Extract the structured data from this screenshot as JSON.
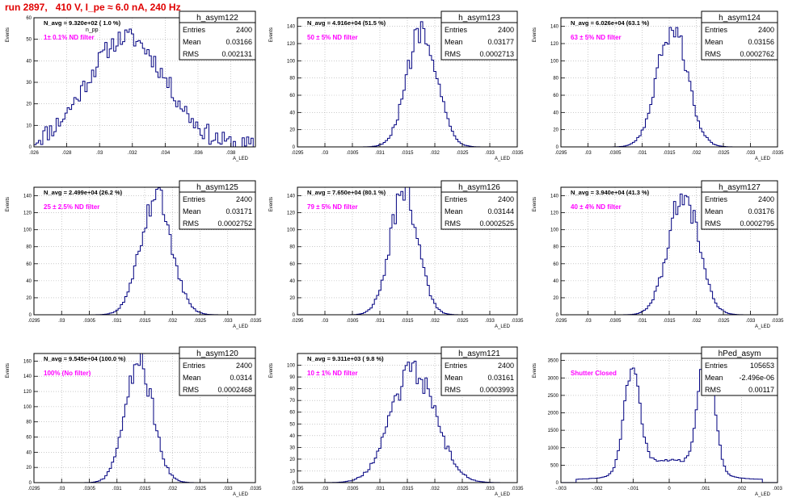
{
  "run_title": "run 2897,   410 V, I_pe ≈ 6.0 nA, 240 Hz",
  "chart_data": [
    {
      "type": "histogram",
      "name": "h_asym122",
      "navg": "N_avg = 9.320e+02 ( 1.0 %)",
      "filter": "1± 0.1% ND filter",
      "stats": [
        [
          "Entries",
          "2400"
        ],
        [
          "Mean",
          "0.03166"
        ],
        [
          "RMS",
          "0.002131"
        ]
      ],
      "xlim": [
        0.026,
        0.0395
      ],
      "ylim": [
        0,
        60
      ],
      "xticks": [
        0.026,
        0.028,
        0.03,
        0.032,
        0.034,
        0.036,
        0.038
      ],
      "yticks": [
        0,
        10,
        20,
        30,
        40,
        50,
        60
      ],
      "xlabel": "A_LED",
      "ylabel": "Events",
      "shape": {
        "mode": "broad",
        "mean": 0.03166,
        "sigma": 0.0024,
        "peak": 51
      },
      "annotation": "n_pp"
    },
    {
      "type": "histogram",
      "name": "h_asym123",
      "navg": "N_avg = 4.916e+04 (51.5 %)",
      "filter": "50 ± 5% ND filter",
      "stats": [
        [
          "Entries",
          "2400"
        ],
        [
          "Mean",
          "0.03177"
        ],
        [
          "RMS",
          "0.0002713"
        ]
      ],
      "xlim": [
        0.0295,
        0.0335
      ],
      "ylim": [
        0,
        150
      ],
      "xticks": [
        0.0295,
        0.03,
        0.0305,
        0.031,
        0.0315,
        0.032,
        0.0325,
        0.033,
        0.0335
      ],
      "yticks": [
        0,
        20,
        40,
        60,
        80,
        100,
        120,
        140
      ],
      "xlabel": "A_LED",
      "ylabel": "Events",
      "shape": {
        "mode": "gauss",
        "mean": 0.03177,
        "sigma": 0.00027,
        "peak": 140
      }
    },
    {
      "type": "histogram",
      "name": "h_asym124",
      "navg": "N_avg = 6.026e+04 (63.1 %)",
      "filter": "63 ± 5% ND filter",
      "stats": [
        [
          "Entries",
          "2400"
        ],
        [
          "Mean",
          "0.03156"
        ],
        [
          "RMS",
          "0.0002762"
        ]
      ],
      "xlim": [
        0.0295,
        0.0335
      ],
      "ylim": [
        0,
        150
      ],
      "xticks": [
        0.0295,
        0.03,
        0.0305,
        0.031,
        0.0315,
        0.032,
        0.0325,
        0.033,
        0.0335
      ],
      "yticks": [
        0,
        20,
        40,
        60,
        80,
        100,
        120,
        140
      ],
      "xlabel": "A_LED",
      "ylabel": "Events",
      "shape": {
        "mode": "gauss",
        "mean": 0.03156,
        "sigma": 0.00028,
        "peak": 138
      }
    },
    {
      "type": "histogram",
      "name": "h_asym125",
      "navg": "N_avg = 2.499e+04 (26.2 %)",
      "filter": "25 ± 2.5% ND filter",
      "stats": [
        [
          "Entries",
          "2400"
        ],
        [
          "Mean",
          "0.03171"
        ],
        [
          "RMS",
          "0.0002752"
        ]
      ],
      "xlim": [
        0.0295,
        0.0335
      ],
      "ylim": [
        0,
        150
      ],
      "xticks": [
        0.0295,
        0.03,
        0.0305,
        0.031,
        0.0315,
        0.032,
        0.0325,
        0.033,
        0.0335
      ],
      "yticks": [
        0,
        20,
        40,
        60,
        80,
        100,
        120,
        140
      ],
      "xlabel": "A_LED",
      "ylabel": "Events",
      "shape": {
        "mode": "gauss",
        "mean": 0.03171,
        "sigma": 0.00028,
        "peak": 138
      }
    },
    {
      "type": "histogram",
      "name": "h_asym126",
      "navg": "N_avg = 7.650e+04 (80.1 %)",
      "filter": "79 ± 5% ND filter",
      "stats": [
        [
          "Entries",
          "2400"
        ],
        [
          "Mean",
          "0.03144"
        ],
        [
          "RMS",
          "0.0002525"
        ]
      ],
      "xlim": [
        0.0295,
        0.0335
      ],
      "ylim": [
        0,
        150
      ],
      "xticks": [
        0.0295,
        0.03,
        0.0305,
        0.031,
        0.0315,
        0.032,
        0.0325,
        0.033,
        0.0335
      ],
      "yticks": [
        0,
        20,
        40,
        60,
        80,
        100,
        120,
        140
      ],
      "xlabel": "A_LED",
      "ylabel": "Events",
      "shape": {
        "mode": "gauss",
        "mean": 0.03144,
        "sigma": 0.00025,
        "peak": 148
      }
    },
    {
      "type": "histogram",
      "name": "h_asym127",
      "navg": "N_avg = 3.940e+04 (41.3 %)",
      "filter": "40 ± 4% ND filter",
      "stats": [
        [
          "Entries",
          "2400"
        ],
        [
          "Mean",
          "0.03176"
        ],
        [
          "RMS",
          "0.0002795"
        ]
      ],
      "xlim": [
        0.0295,
        0.0335
      ],
      "ylim": [
        0,
        150
      ],
      "xticks": [
        0.0295,
        0.03,
        0.0305,
        0.031,
        0.0315,
        0.032,
        0.0325,
        0.033,
        0.0335
      ],
      "yticks": [
        0,
        20,
        40,
        60,
        80,
        100,
        120,
        140
      ],
      "xlabel": "A_LED",
      "ylabel": "Events",
      "shape": {
        "mode": "gauss",
        "mean": 0.03176,
        "sigma": 0.00028,
        "peak": 142
      }
    },
    {
      "type": "histogram",
      "name": "h_asym120",
      "navg": "N_avg = 9.545e+04 (100.0 %)",
      "filter": "100% (No filter)",
      "stats": [
        [
          "Entries",
          "2400"
        ],
        [
          "Mean",
          "0.0314"
        ],
        [
          "RMS",
          "0.0002468"
        ]
      ],
      "xlim": [
        0.0295,
        0.0335
      ],
      "ylim": [
        0,
        170
      ],
      "xticks": [
        0.0295,
        0.03,
        0.0305,
        0.031,
        0.0315,
        0.032,
        0.0325,
        0.033,
        0.0335
      ],
      "yticks": [
        0,
        20,
        40,
        60,
        80,
        100,
        120,
        140,
        160
      ],
      "xlabel": "A_LED",
      "ylabel": "Events",
      "shape": {
        "mode": "gauss",
        "mean": 0.0314,
        "sigma": 0.00025,
        "peak": 158
      }
    },
    {
      "type": "histogram",
      "name": "h_asym121",
      "navg": "N_avg = 9.311e+03 ( 9.8 %)",
      "filter": "10 ± 1% ND filter",
      "stats": [
        [
          "Entries",
          "2400"
        ],
        [
          "Mean",
          "0.03161"
        ],
        [
          "RMS",
          "0.0003993"
        ]
      ],
      "xlim": [
        0.0295,
        0.0335
      ],
      "ylim": [
        0,
        110
      ],
      "xticks": [
        0.0295,
        0.03,
        0.0305,
        0.031,
        0.0315,
        0.032,
        0.0325,
        0.033,
        0.0335
      ],
      "yticks": [
        0,
        10,
        20,
        30,
        40,
        50,
        60,
        70,
        80,
        90,
        100
      ],
      "xlabel": "A_LED",
      "ylabel": "Events",
      "shape": {
        "mode": "gauss",
        "mean": 0.03161,
        "sigma": 0.0004,
        "peak": 97
      }
    },
    {
      "type": "histogram",
      "name": "hPed_asym",
      "navg": "",
      "filter": "Shutter Closed",
      "stats": [
        [
          "Entries",
          "105653"
        ],
        [
          "Mean",
          "-2.496e-06"
        ],
        [
          "RMS",
          "0.00117"
        ]
      ],
      "xlim": [
        -0.003,
        0.003
      ],
      "ylim": [
        0,
        3700
      ],
      "xticks": [
        -0.003,
        -0.002,
        -0.001,
        0,
        0.001,
        0.002,
        0.003
      ],
      "yticks": [
        0,
        500,
        1000,
        1500,
        2000,
        2500,
        3000,
        3500
      ],
      "xlabel": "A_LED",
      "ylabel": "Events",
      "shape": {
        "mode": "double",
        "peaks": [
          [
            -0.00103,
            0.00022,
            2900
          ],
          [
            0.00103,
            0.00022,
            3450
          ]
        ],
        "base": 560
      }
    }
  ]
}
